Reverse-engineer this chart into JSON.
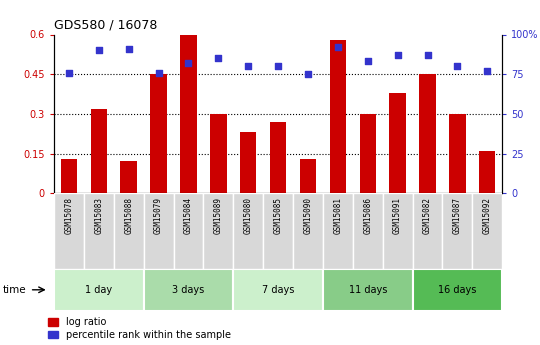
{
  "title": "GDS580 / 16078",
  "samples": [
    "GSM15078",
    "GSM15083",
    "GSM15088",
    "GSM15079",
    "GSM15084",
    "GSM15089",
    "GSM15080",
    "GSM15085",
    "GSM15090",
    "GSM15081",
    "GSM15086",
    "GSM15091",
    "GSM15082",
    "GSM15087",
    "GSM15092"
  ],
  "log_ratio": [
    0.13,
    0.32,
    0.12,
    0.45,
    0.6,
    0.3,
    0.23,
    0.27,
    0.13,
    0.58,
    0.3,
    0.38,
    0.45,
    0.3,
    0.16
  ],
  "percentile_rank": [
    76,
    90,
    91,
    76,
    82,
    85,
    80,
    80,
    75,
    92,
    83,
    87,
    87,
    80,
    77
  ],
  "bar_color": "#cc0000",
  "dot_color": "#3333cc",
  "groups": [
    {
      "label": "1 day",
      "start": 0,
      "end": 3,
      "color": "#ccf0cc"
    },
    {
      "label": "3 days",
      "start": 3,
      "end": 6,
      "color": "#aadcaa"
    },
    {
      "label": "7 days",
      "start": 6,
      "end": 9,
      "color": "#ccf0cc"
    },
    {
      "label": "11 days",
      "start": 9,
      "end": 12,
      "color": "#88cc88"
    },
    {
      "label": "16 days",
      "start": 12,
      "end": 15,
      "color": "#55bb55"
    }
  ],
  "ylim_left": [
    0,
    0.6
  ],
  "ylim_right": [
    0,
    100
  ],
  "yticks_left": [
    0,
    0.15,
    0.3,
    0.45,
    0.6
  ],
  "yticks_right": [
    0,
    25,
    50,
    75,
    100
  ],
  "ytick_labels_left": [
    "0",
    "0.15",
    "0.3",
    "0.45",
    "0.6"
  ],
  "ytick_labels_right": [
    "0",
    "25",
    "50",
    "75",
    "100%"
  ],
  "hlines": [
    0.15,
    0.3,
    0.45
  ],
  "legend_labels": [
    "log ratio",
    "percentile rank within the sample"
  ],
  "legend_colors": [
    "#cc0000",
    "#3333cc"
  ],
  "xlabel_time": "time",
  "bar_width": 0.55
}
